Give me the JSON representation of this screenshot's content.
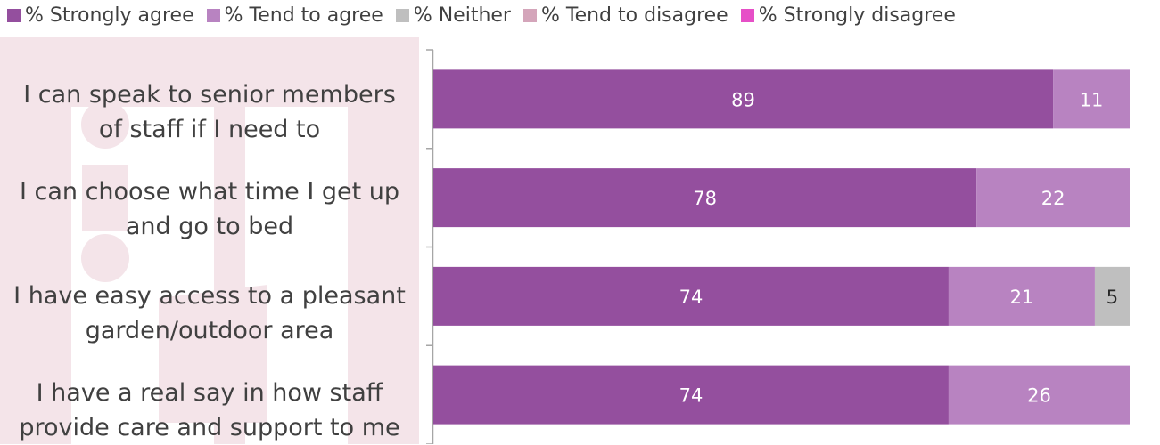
{
  "chart_data": {
    "type": "bar",
    "orientation": "horizontal",
    "stacked": true,
    "categories": [
      "I can speak to senior members of staff if I need to",
      "I can choose what time I get up and go to bed",
      "I have easy access to a pleasant garden/outdoor area",
      "I have a real say in how staff provide care and support to me"
    ],
    "series": [
      {
        "name": "% Strongly agree",
        "values": [
          89,
          78,
          74,
          74
        ],
        "color": "#944f9e"
      },
      {
        "name": "% Tend to agree",
        "values": [
          11,
          22,
          21,
          26
        ],
        "color": "#b883c1"
      },
      {
        "name": "% Neither",
        "values": [
          0,
          0,
          5,
          0
        ],
        "color": "#bfbfbf"
      },
      {
        "name": "% Tend to disagree",
        "values": [
          0,
          0,
          0,
          0
        ],
        "color": "#d4a5ba"
      },
      {
        "name": "% Strongly disagree",
        "values": [
          0,
          0,
          0,
          0
        ],
        "color": "#e64fc7"
      }
    ],
    "xlim": [
      0,
      100
    ],
    "legend_position": "top",
    "grid": false
  },
  "labels": [
    [
      "I can speak to senior members",
      "of staff if I need to"
    ],
    [
      "I can choose what time I get up",
      "and go to bed"
    ],
    [
      "I have easy access to a pleasant",
      "garden/outdoor area"
    ],
    [
      "I have a real say in how staff",
      "provide care and support to me"
    ]
  ],
  "colors": {
    "watermark": "#f4e4e9",
    "axis": "#a6a6a6",
    "label_text": "#404040",
    "dark_value_text": "#262626"
  }
}
